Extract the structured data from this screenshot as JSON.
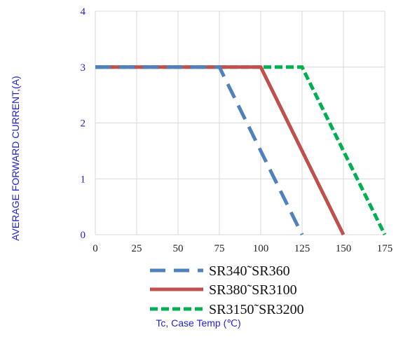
{
  "chart_data": {
    "type": "line",
    "xlabel": "Tc, Case Temp (℃)",
    "ylabel": "AVERAGE FORWARD CURRENT,(A)",
    "xlim": [
      0,
      175
    ],
    "ylim": [
      0,
      4
    ],
    "x_ticks": [
      "0",
      "25",
      "50",
      "75",
      "100",
      "125",
      "150",
      "175"
    ],
    "y_ticks": [
      "0",
      "1",
      "2",
      "3",
      "4"
    ],
    "grid": true,
    "legend_position": "bottom",
    "series": [
      {
        "name": "SR340˜SR360",
        "color": "#4f81bd",
        "style": "dash",
        "points": [
          [
            0,
            3
          ],
          [
            75,
            3
          ],
          [
            125,
            0
          ]
        ]
      },
      {
        "name": "SR380˜SR3100",
        "color": "#c0504d",
        "style": "solid",
        "points": [
          [
            0,
            3
          ],
          [
            100,
            3
          ],
          [
            150,
            0
          ]
        ]
      },
      {
        "name": "SR3150˜SR3200",
        "color": "#00b050",
        "style": "dot",
        "points": [
          [
            0,
            3
          ],
          [
            125,
            3
          ],
          [
            175,
            0
          ]
        ]
      }
    ]
  }
}
